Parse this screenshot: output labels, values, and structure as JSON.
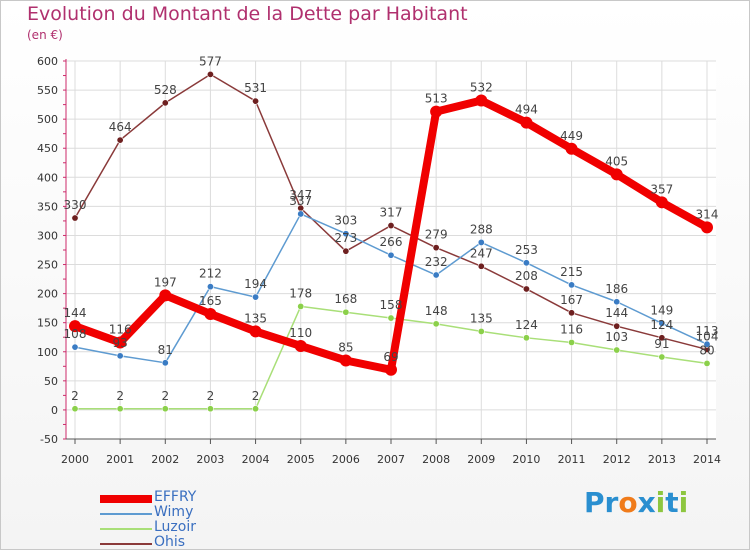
{
  "header": {
    "title": "Evolution du Montant de la Dette par Habitant",
    "unit": "(en €)"
  },
  "brand": {
    "parts": [
      "P",
      "r",
      "o",
      "x",
      "i",
      "t",
      "i"
    ],
    "colors": [
      "#2a8fd0",
      "#2a8fd0",
      "#f07b1a",
      "#2a8fd0",
      "#8dc63f",
      "#2a8fd0",
      "#8dc63f"
    ]
  },
  "chart_data": {
    "type": "line",
    "title": "Evolution du Montant de la Dette par Habitant",
    "ylabel": "(en €)",
    "xlabel": "",
    "x": [
      "2000",
      "2001",
      "2002",
      "2003",
      "2004",
      "2005",
      "2006",
      "2007",
      "2008",
      "2009",
      "2010",
      "2011",
      "2012",
      "2013",
      "2014"
    ],
    "ylim": [
      -50,
      600
    ],
    "yticks": [
      "600",
      "550",
      "500",
      "450",
      "400",
      "350",
      "300",
      "250",
      "200",
      "150",
      "100",
      "50",
      "0",
      "-50"
    ],
    "grid": true,
    "legend": "bottom-left",
    "series": [
      {
        "name": "EFFRY",
        "color": "#f00000",
        "dot": "#f00000",
        "width": "thick",
        "values": [
          144,
          116,
          197,
          165,
          135,
          110,
          85,
          69,
          513,
          532,
          494,
          449,
          405,
          357,
          314
        ],
        "labels": [
          "144",
          "116",
          "197",
          "165",
          "135",
          "110",
          "85",
          "69",
          "513",
          "532",
          "494",
          "449",
          "405",
          "357",
          "314"
        ]
      },
      {
        "name": "Wimy",
        "color": "#5e9bd1",
        "dot": "#3a7cc4",
        "width": "thin",
        "values": [
          108,
          93,
          81,
          212,
          194,
          337,
          303,
          266,
          232,
          288,
          253,
          215,
          186,
          149,
          113
        ],
        "labels": [
          "108",
          "93",
          "81",
          "212",
          "194",
          "337",
          "303",
          "266",
          "232",
          "288",
          "253",
          "215",
          "186",
          "149",
          "113"
        ]
      },
      {
        "name": "Luzoir",
        "color": "#a9df78",
        "dot": "#8bd04a",
        "width": "thin",
        "values": [
          2,
          2,
          2,
          2,
          2,
          178,
          168,
          158,
          148,
          135,
          124,
          116,
          103,
          91,
          80
        ],
        "labels": [
          "2",
          "2",
          "2",
          "2",
          "2",
          "178",
          "168",
          "158",
          "148",
          "135",
          "124",
          "116",
          "103",
          "91",
          "80"
        ]
      },
      {
        "name": "Ohis",
        "color": "#8a3a3a",
        "dot": "#6e2020",
        "width": "thin",
        "values": [
          330,
          464,
          528,
          577,
          531,
          347,
          273,
          317,
          279,
          247,
          208,
          167,
          144,
          124,
          104
        ],
        "labels": [
          "330",
          "464",
          "528",
          "577",
          "531",
          "347",
          "273",
          "317",
          "279",
          "247",
          "208",
          "167",
          "144",
          "124",
          "104"
        ]
      }
    ]
  }
}
